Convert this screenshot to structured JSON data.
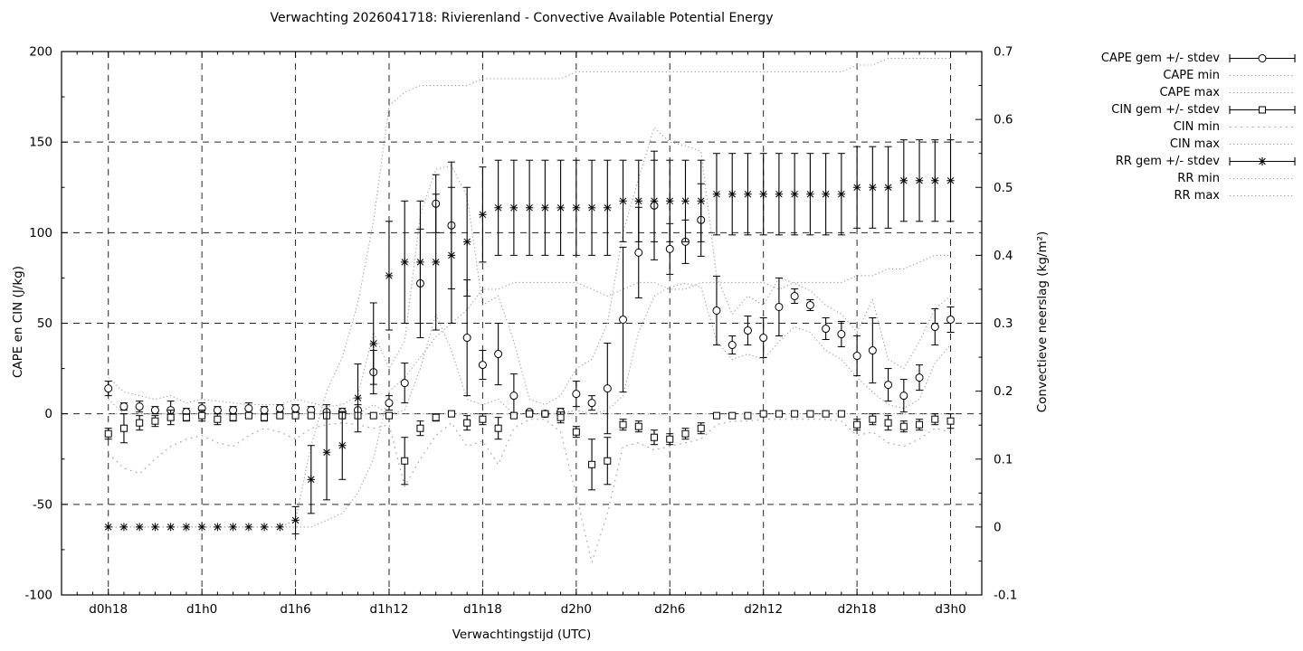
{
  "title": "Verwachting 2026041718: Rivierenland - Convective Available Potential Energy",
  "axes": {
    "left_label": "CAPE en CIN (J/kg)",
    "right_label": "Convectieve neerslag (kg/m²)",
    "x_label": "Verwachtingstijd (UTC)"
  },
  "colors": {
    "series": "#000000",
    "dotted": "#9a9a9a",
    "grid": "#000000",
    "background": "#ffffff"
  },
  "chart_data": {
    "type": "line",
    "title": "Verwachting 2026041718: Rivierenland - Convective Available Potential Energy",
    "xlabel": "Verwachtingstijd (UTC)",
    "ylabel_left": "CAPE en CIN (J/kg)",
    "ylabel_right": "Convectieve neerslag (kg/m²)",
    "grid": true,
    "legend_position": "outside-top-right",
    "x_axis": {
      "range_hours": [
        -3,
        56
      ],
      "tick_hours": [
        0,
        6,
        12,
        18,
        24,
        30,
        36,
        42,
        48,
        54
      ],
      "tick_labels": [
        "d0h18",
        "d1h0",
        "d1h6",
        "d1h12",
        "d1h18",
        "d2h0",
        "d2h6",
        "d2h12",
        "d2h18",
        "d3h0"
      ],
      "minor_step": 1
    },
    "left_axis": {
      "range": [
        -100,
        200
      ],
      "ticks": [
        200,
        150,
        100,
        50,
        0,
        -50,
        -100
      ],
      "tick_labels": [
        "200",
        "150",
        "100",
        "50",
        "0",
        "-50",
        "-100"
      ],
      "minor_step": 25
    },
    "right_axis": {
      "range": [
        -0.1,
        0.7
      ],
      "ticks": [
        0.7,
        0.6,
        0.5,
        0.4,
        0.3,
        0.2,
        0.1,
        0,
        -0.1
      ],
      "tick_labels": [
        "0.7",
        "0.6",
        "0.5",
        "0.4",
        "0.3",
        "0.2",
        "0.1",
        "0",
        "-0.1"
      ],
      "minor_step": 0.05
    },
    "hours": [
      0,
      1,
      2,
      3,
      4,
      5,
      6,
      7,
      8,
      9,
      10,
      11,
      12,
      13,
      14,
      15,
      16,
      17,
      18,
      19,
      20,
      21,
      22,
      23,
      24,
      25,
      26,
      27,
      28,
      29,
      30,
      31,
      32,
      33,
      34,
      35,
      36,
      37,
      38,
      39,
      40,
      41,
      42,
      43,
      44,
      45,
      46,
      47,
      48,
      49,
      50,
      51,
      52,
      53,
      54
    ],
    "series": [
      {
        "name": "CAPE gem +/- stdev",
        "axis": "left",
        "style": "errorbar",
        "marker": "circle",
        "mean": [
          14,
          4,
          4,
          2,
          2,
          1,
          3,
          2,
          2,
          3,
          2,
          3,
          3,
          2,
          1,
          1,
          2,
          23,
          6,
          17,
          72,
          116,
          104,
          42,
          27,
          33,
          10,
          1,
          0,
          1,
          11,
          6,
          14,
          52,
          89,
          115,
          91,
          95,
          107,
          57,
          38,
          46,
          42,
          59,
          65,
          60,
          47,
          44,
          32,
          35,
          16,
          10,
          20,
          48,
          52
        ],
        "stdev": [
          4,
          2,
          3,
          2,
          5,
          2,
          3,
          2,
          2,
          3,
          2,
          2,
          2,
          2,
          1,
          2,
          3,
          12,
          4,
          11,
          30,
          16,
          35,
          32,
          8,
          17,
          12,
          1,
          1,
          2,
          7,
          4,
          25,
          40,
          25,
          30,
          14,
          12,
          20,
          19,
          5,
          8,
          11,
          16,
          4,
          3,
          6,
          7,
          11,
          18,
          9,
          9,
          7,
          10,
          7
        ]
      },
      {
        "name": "CAPE min",
        "axis": "left",
        "style": "dotted",
        "values": [
          8,
          0,
          0,
          0,
          0,
          0,
          0,
          0,
          0,
          0,
          0,
          0,
          0,
          0,
          0,
          0,
          0,
          5,
          0,
          2,
          25,
          55,
          35,
          8,
          5,
          8,
          0,
          0,
          0,
          0,
          2,
          0,
          2,
          10,
          45,
          65,
          70,
          72,
          70,
          40,
          30,
          33,
          30,
          40,
          48,
          45,
          35,
          30,
          20,
          12,
          5,
          3,
          8,
          28,
          38
        ]
      },
      {
        "name": "CAPE max",
        "axis": "left",
        "style": "dotted",
        "values": [
          20,
          12,
          10,
          8,
          10,
          6,
          8,
          7,
          6,
          5,
          5,
          5,
          8,
          6,
          4,
          5,
          10,
          45,
          25,
          40,
          110,
          135,
          137,
          120,
          60,
          65,
          40,
          8,
          5,
          10,
          25,
          30,
          50,
          100,
          130,
          158,
          150,
          148,
          145,
          76,
          55,
          65,
          60,
          75,
          72,
          68,
          60,
          55,
          45,
          63,
          30,
          25,
          40,
          58,
          65
        ]
      },
      {
        "name": "CIN gem +/- stdev",
        "axis": "left",
        "style": "errorbar",
        "marker": "square",
        "mean": [
          -11,
          -8,
          -5,
          -4,
          -2,
          -2,
          -1,
          -3,
          -2,
          -1,
          -2,
          -1,
          -1,
          -1,
          -1,
          -1,
          -1,
          -1,
          -1,
          -26,
          -8,
          -2,
          0,
          -5,
          -3,
          -8,
          -1,
          0,
          0,
          -2,
          -10,
          -28,
          -26,
          -6,
          -7,
          -13,
          -14,
          -11,
          -8,
          -1,
          -1,
          -1,
          0,
          0,
          0,
          0,
          0,
          0,
          -6,
          -3,
          -5,
          -7,
          -6,
          -3,
          -4
        ],
        "stdev": [
          3,
          8,
          4,
          3,
          4,
          2,
          3,
          3,
          2,
          1,
          2,
          1,
          1,
          1,
          1,
          1,
          1,
          1,
          1,
          13,
          4,
          2,
          1,
          4,
          3,
          6,
          1,
          1,
          1,
          3,
          3,
          14,
          13,
          3,
          3,
          4,
          3,
          3,
          3,
          1,
          1,
          1,
          1,
          1,
          1,
          1,
          1,
          1,
          3,
          3,
          4,
          3,
          3,
          3,
          4
        ]
      },
      {
        "name": "CIN min",
        "axis": "left",
        "style": "dotted-coarse",
        "values": [
          -22,
          -30,
          -33,
          -25,
          -18,
          -14,
          -12,
          -16,
          -18,
          -12,
          -8,
          -10,
          -14,
          -8,
          -6,
          -5,
          -6,
          -8,
          -6,
          -40,
          -25,
          -12,
          -5,
          -18,
          -15,
          -28,
          -8,
          -3,
          -3,
          -10,
          -45,
          -82,
          -55,
          -18,
          -16,
          -20,
          -18,
          -16,
          -14,
          -6,
          -4,
          -4,
          -3,
          -3,
          -3,
          -3,
          -3,
          -4,
          -12,
          -10,
          -16,
          -18,
          -14,
          -8,
          -10
        ]
      },
      {
        "name": "CIN max",
        "axis": "left",
        "style": "dotted",
        "values": [
          0,
          0,
          0,
          0,
          0,
          0,
          0,
          0,
          0,
          0,
          0,
          0,
          0,
          0,
          0,
          0,
          0,
          0,
          0,
          0,
          0,
          0,
          0,
          0,
          0,
          0,
          0,
          0,
          0,
          0,
          0,
          0,
          0,
          0,
          0,
          0,
          0,
          0,
          0,
          0,
          0,
          0,
          0,
          0,
          0,
          0,
          0,
          0,
          0,
          0,
          0,
          0,
          0,
          0,
          0
        ]
      },
      {
        "name": "RR gem +/- stdev",
        "axis": "right",
        "style": "errorbar",
        "marker": "star",
        "mean": [
          0,
          0,
          0,
          0,
          0,
          0,
          0,
          0,
          0,
          0,
          0,
          0,
          0.01,
          0.07,
          0.11,
          0.12,
          0.19,
          0.27,
          0.37,
          0.39,
          0.39,
          0.39,
          0.4,
          0.42,
          0.46,
          0.47,
          0.47,
          0.47,
          0.47,
          0.47,
          0.47,
          0.47,
          0.47,
          0.48,
          0.48,
          0.48,
          0.48,
          0.48,
          0.48,
          0.49,
          0.49,
          0.49,
          0.49,
          0.49,
          0.49,
          0.49,
          0.49,
          0.49,
          0.5,
          0.5,
          0.5,
          0.51,
          0.51,
          0.51,
          0.51
        ],
        "stdev": [
          0,
          0,
          0,
          0,
          0,
          0,
          0,
          0,
          0,
          0,
          0,
          0,
          0.02,
          0.05,
          0.07,
          0.05,
          0.05,
          0.06,
          0.08,
          0.09,
          0.09,
          0.1,
          0.1,
          0.08,
          0.07,
          0.07,
          0.07,
          0.07,
          0.07,
          0.07,
          0.07,
          0.07,
          0.07,
          0.06,
          0.06,
          0.06,
          0.06,
          0.06,
          0.06,
          0.06,
          0.06,
          0.06,
          0.06,
          0.06,
          0.06,
          0.06,
          0.06,
          0.06,
          0.06,
          0.06,
          0.06,
          0.06,
          0.06,
          0.06,
          0.06
        ]
      },
      {
        "name": "RR min",
        "axis": "right",
        "style": "dotted",
        "values": [
          0,
          0,
          0,
          0,
          0,
          0,
          0,
          0,
          0,
          0,
          0,
          0,
          0,
          0,
          0.01,
          0.02,
          0.05,
          0.1,
          0.2,
          0.22,
          0.25,
          0.28,
          0.3,
          0.32,
          0.35,
          0.35,
          0.36,
          0.36,
          0.36,
          0.36,
          0.36,
          0.35,
          0.34,
          0.35,
          0.36,
          0.36,
          0.35,
          0.35,
          0.36,
          0.36,
          0.36,
          0.36,
          0.36,
          0.35,
          0.36,
          0.36,
          0.36,
          0.36,
          0.37,
          0.37,
          0.38,
          0.38,
          0.39,
          0.4,
          0.4
        ]
      },
      {
        "name": "RR max",
        "axis": "right",
        "style": "dotted",
        "values": [
          0,
          0,
          0,
          0,
          0,
          0,
          0,
          0,
          0,
          0,
          0,
          0,
          0.01,
          0.12,
          0.2,
          0.25,
          0.33,
          0.45,
          0.62,
          0.64,
          0.65,
          0.65,
          0.65,
          0.65,
          0.66,
          0.66,
          0.66,
          0.66,
          0.66,
          0.66,
          0.67,
          0.67,
          0.67,
          0.67,
          0.67,
          0.67,
          0.67,
          0.67,
          0.67,
          0.67,
          0.67,
          0.67,
          0.67,
          0.67,
          0.67,
          0.67,
          0.67,
          0.67,
          0.68,
          0.68,
          0.69,
          0.69,
          0.69,
          0.69,
          0.69
        ]
      }
    ]
  }
}
